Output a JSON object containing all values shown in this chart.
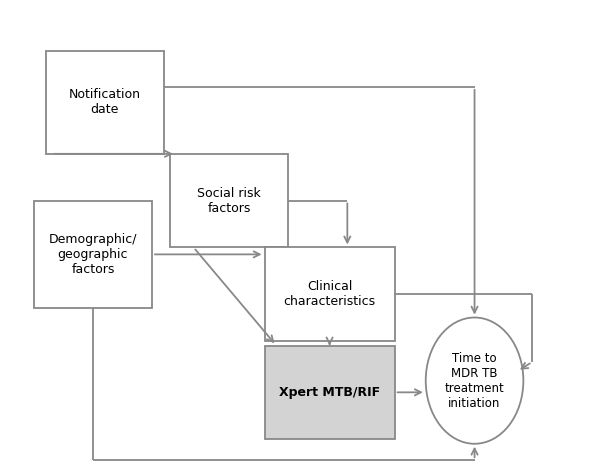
{
  "fig_width": 6.0,
  "fig_height": 4.76,
  "dpi": 100,
  "bg": "#ffffff",
  "ec": "#888888",
  "ac": "#888888",
  "lw": 1.3,
  "fs": 9,
  "nd": [
    0.07,
    0.68,
    0.2,
    0.22
  ],
  "sr": [
    0.28,
    0.48,
    0.2,
    0.2
  ],
  "cc": [
    0.44,
    0.28,
    0.22,
    0.2
  ],
  "xp": [
    0.44,
    0.07,
    0.22,
    0.2
  ],
  "dg": [
    0.05,
    0.35,
    0.2,
    0.23
  ],
  "el": [
    0.795,
    0.195,
    0.165,
    0.27
  ]
}
